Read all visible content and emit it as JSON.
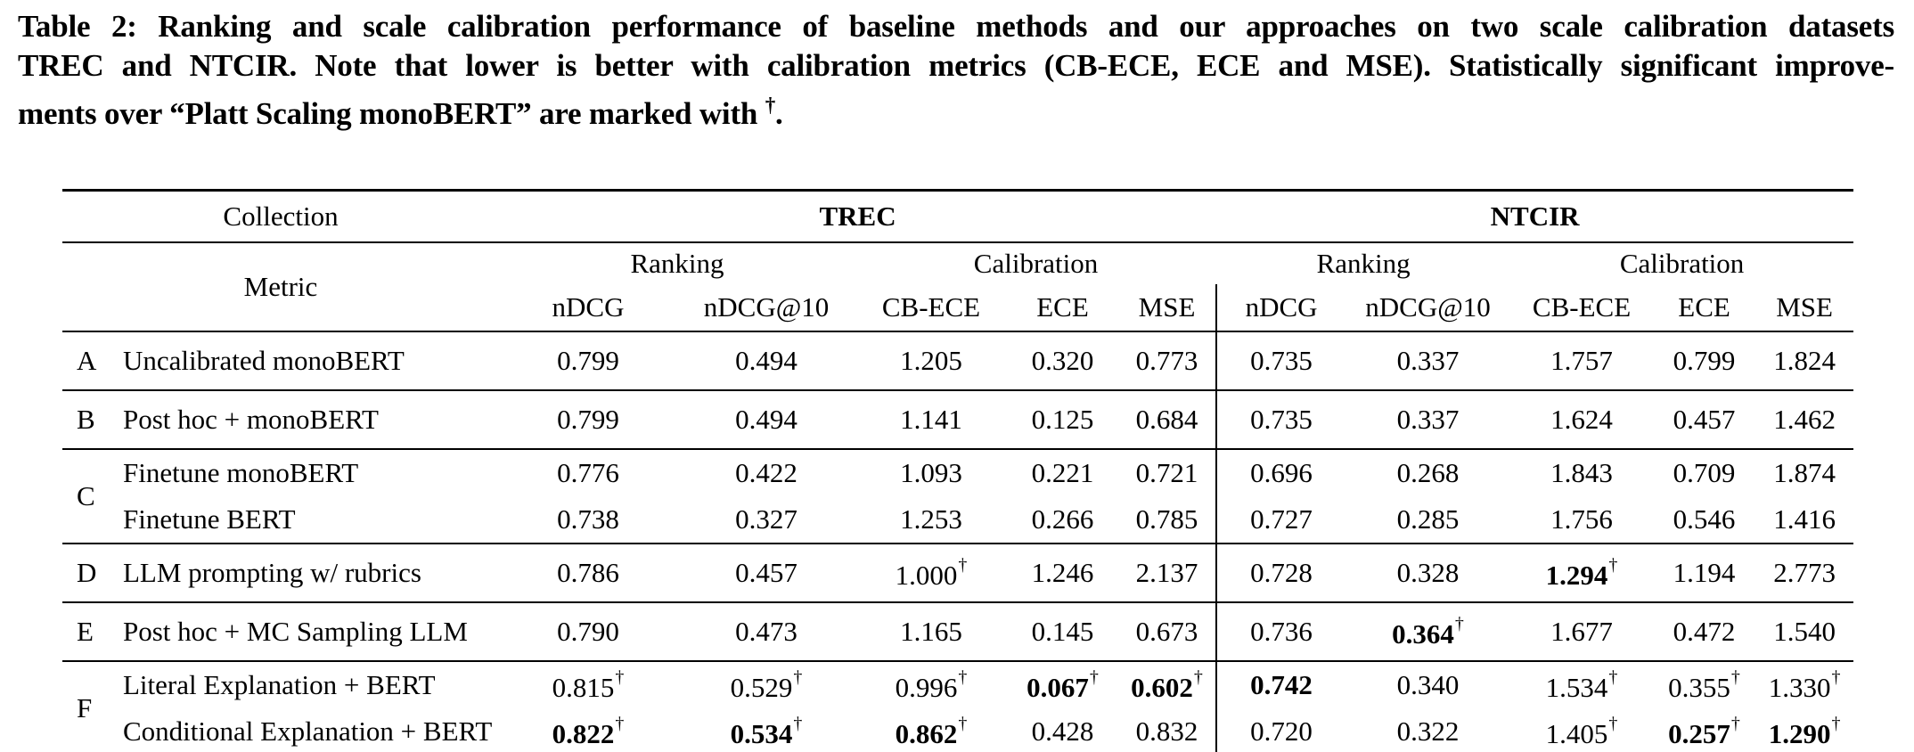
{
  "caption": {
    "lines": [
      "Table 2: Ranking and scale calibration performance of baseline methods and our approaches on two scale calibration datasets",
      "TREC and NTCIR. Note that lower is better with calibration metrics (CB-ECE, ECE and MSE). Statistically significant improve-",
      "ments over “Platt Scaling monoBERT” are marked with "
    ],
    "dagger": "†",
    "period": "."
  },
  "table": {
    "collection_label": "Collection",
    "metric_label": "Metric",
    "trec_label": "TREC",
    "ntcir_label": "NTCIR",
    "ranking_label": "Ranking",
    "calibration_label": "Calibration",
    "metrics": [
      "nDCG",
      "nDCG@10",
      "CB-ECE",
      "ECE",
      "MSE"
    ],
    "groups": [
      {
        "letter": "A",
        "rows": [
          {
            "method": "Uncalibrated monoBERT",
            "trec": [
              {
                "v": "0.799"
              },
              {
                "v": "0.494"
              },
              {
                "v": "1.205"
              },
              {
                "v": "0.320"
              },
              {
                "v": "0.773"
              }
            ],
            "ntcir": [
              {
                "v": "0.735"
              },
              {
                "v": "0.337"
              },
              {
                "v": "1.757"
              },
              {
                "v": "0.799"
              },
              {
                "v": "1.824"
              }
            ]
          }
        ]
      },
      {
        "letter": "B",
        "rows": [
          {
            "method": "Post hoc + monoBERT",
            "trec": [
              {
                "v": "0.799"
              },
              {
                "v": "0.494"
              },
              {
                "v": "1.141"
              },
              {
                "v": "0.125"
              },
              {
                "v": "0.684"
              }
            ],
            "ntcir": [
              {
                "v": "0.735"
              },
              {
                "v": "0.337"
              },
              {
                "v": "1.624"
              },
              {
                "v": "0.457"
              },
              {
                "v": "1.462"
              }
            ]
          }
        ]
      },
      {
        "letter": "C",
        "rows": [
          {
            "method": "Finetune monoBERT",
            "trec": [
              {
                "v": "0.776"
              },
              {
                "v": "0.422"
              },
              {
                "v": "1.093"
              },
              {
                "v": "0.221"
              },
              {
                "v": "0.721"
              }
            ],
            "ntcir": [
              {
                "v": "0.696"
              },
              {
                "v": "0.268"
              },
              {
                "v": "1.843"
              },
              {
                "v": "0.709"
              },
              {
                "v": "1.874"
              }
            ]
          },
          {
            "method": "Finetune BERT",
            "trec": [
              {
                "v": "0.738"
              },
              {
                "v": "0.327"
              },
              {
                "v": "1.253"
              },
              {
                "v": "0.266"
              },
              {
                "v": "0.785"
              }
            ],
            "ntcir": [
              {
                "v": "0.727"
              },
              {
                "v": "0.285"
              },
              {
                "v": "1.756"
              },
              {
                "v": "0.546"
              },
              {
                "v": "1.416"
              }
            ]
          }
        ]
      },
      {
        "letter": "D",
        "rows": [
          {
            "method": "LLM prompting w/ rubrics",
            "trec": [
              {
                "v": "0.786"
              },
              {
                "v": "0.457"
              },
              {
                "v": "1.000",
                "dag": true
              },
              {
                "v": "1.246"
              },
              {
                "v": "2.137"
              }
            ],
            "ntcir": [
              {
                "v": "0.728"
              },
              {
                "v": "0.328"
              },
              {
                "v": "1.294",
                "dag": true,
                "bold": true
              },
              {
                "v": "1.194"
              },
              {
                "v": "2.773"
              }
            ]
          }
        ]
      },
      {
        "letter": "E",
        "rows": [
          {
            "method": "Post hoc + MC Sampling LLM",
            "trec": [
              {
                "v": "0.790"
              },
              {
                "v": "0.473"
              },
              {
                "v": "1.165"
              },
              {
                "v": "0.145"
              },
              {
                "v": "0.673"
              }
            ],
            "ntcir": [
              {
                "v": "0.736"
              },
              {
                "v": "0.364",
                "dag": true,
                "bold": true
              },
              {
                "v": "1.677"
              },
              {
                "v": "0.472"
              },
              {
                "v": "1.540"
              }
            ]
          }
        ]
      },
      {
        "letter": "F",
        "rows": [
          {
            "method": "Literal Explanation + BERT",
            "trec": [
              {
                "v": "0.815",
                "dag": true
              },
              {
                "v": "0.529",
                "dag": true
              },
              {
                "v": "0.996",
                "dag": true
              },
              {
                "v": "0.067",
                "dag": true,
                "bold": true
              },
              {
                "v": "0.602",
                "dag": true,
                "bold": true
              }
            ],
            "ntcir": [
              {
                "v": "0.742",
                "bold": true
              },
              {
                "v": "0.340"
              },
              {
                "v": "1.534",
                "dag": true
              },
              {
                "v": "0.355",
                "dag": true
              },
              {
                "v": "1.330",
                "dag": true
              }
            ]
          },
          {
            "method": "Conditional Explanation + BERT",
            "trec": [
              {
                "v": "0.822",
                "dag": true,
                "bold": true
              },
              {
                "v": "0.534",
                "dag": true,
                "bold": true
              },
              {
                "v": "0.862",
                "dag": true,
                "bold": true
              },
              {
                "v": "0.428"
              },
              {
                "v": "0.832"
              }
            ],
            "ntcir": [
              {
                "v": "0.720"
              },
              {
                "v": "0.322"
              },
              {
                "v": "1.405",
                "dag": true
              },
              {
                "v": "0.257",
                "dag": true,
                "bold": true
              },
              {
                "v": "1.290",
                "dag": true,
                "bold": true
              }
            ]
          }
        ]
      }
    ]
  }
}
